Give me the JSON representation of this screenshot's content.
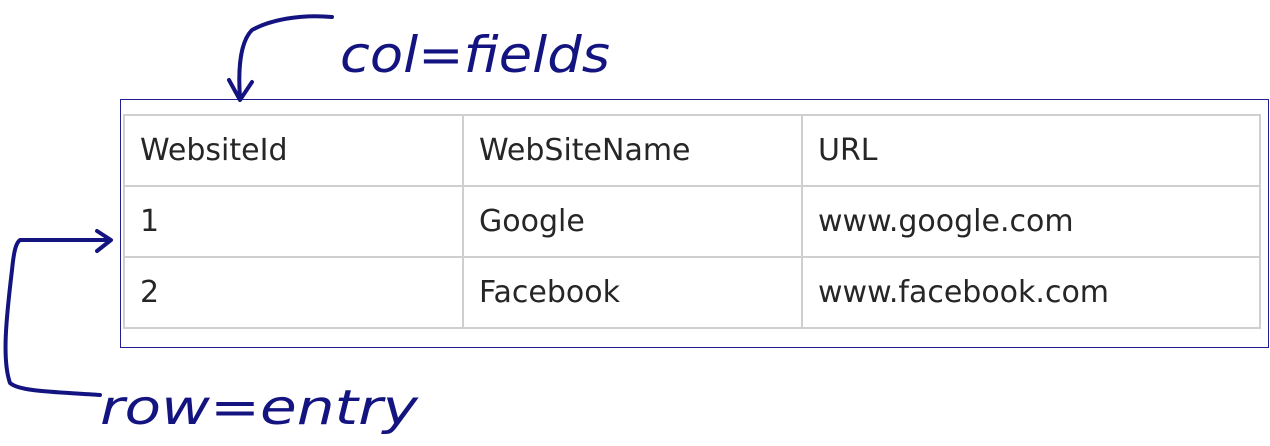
{
  "table": {
    "headers": [
      "WebsiteId",
      "WebSiteName",
      "URL"
    ],
    "rows": [
      [
        "1",
        "Google",
        "www.google.com"
      ],
      [
        "2",
        "Facebook",
        "www.facebook.com"
      ]
    ]
  },
  "annotations": {
    "col_note": "col=fields",
    "row_note": "row=entry",
    "ink_color": "#141480",
    "frame_color": "#1f1f8f",
    "grid_color": "#cfcfcf"
  }
}
